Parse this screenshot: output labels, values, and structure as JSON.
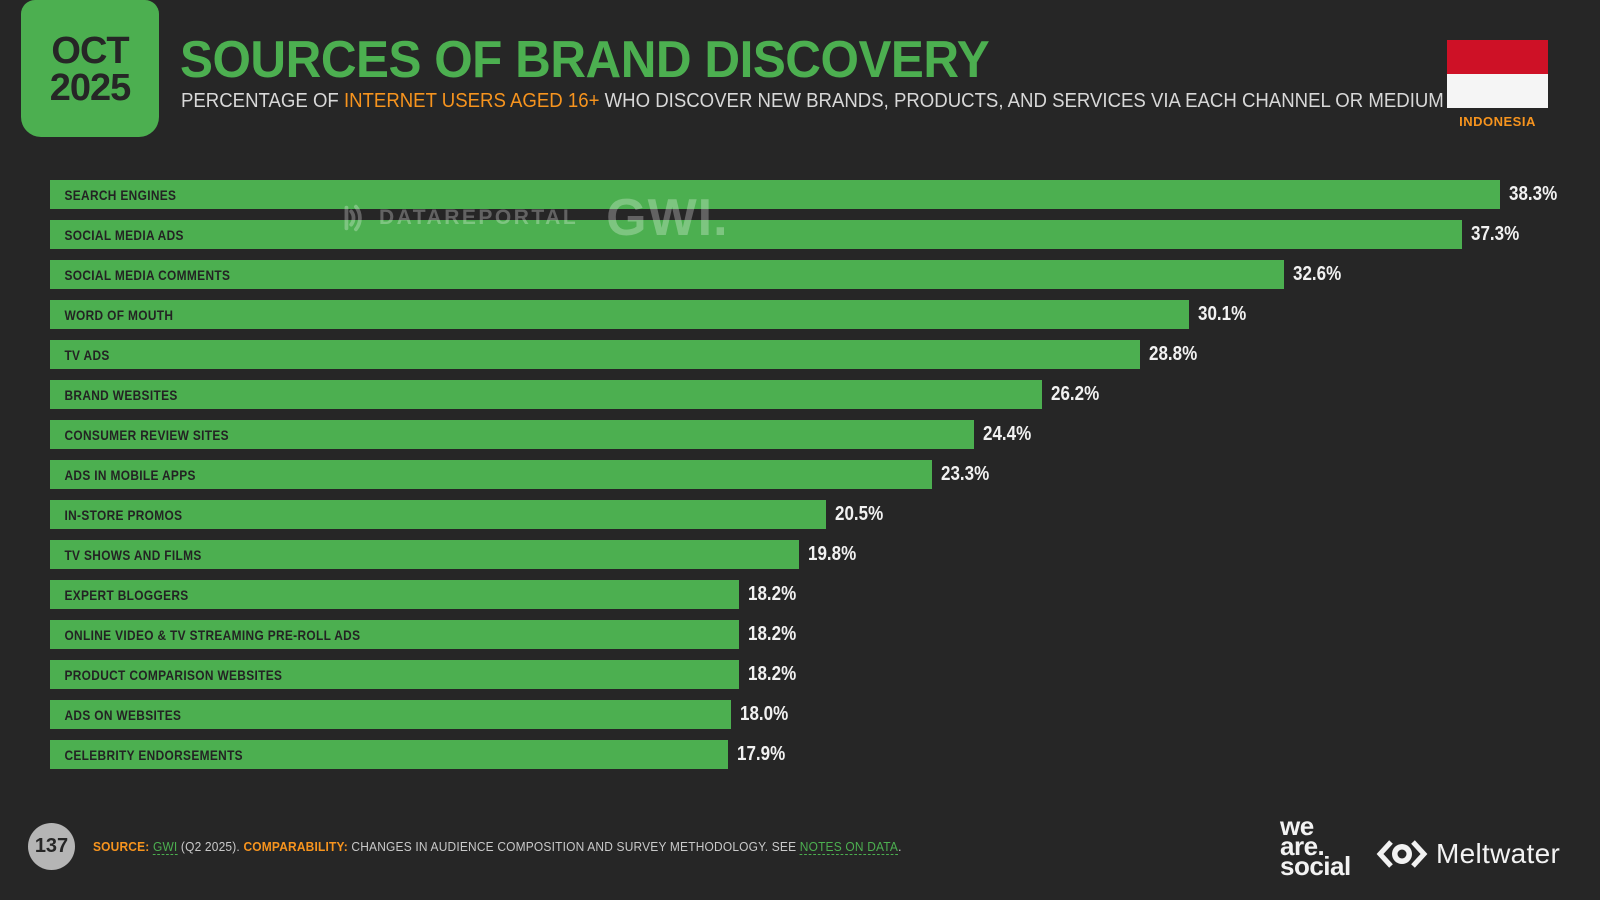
{
  "header": {
    "badge": {
      "month": "OCT",
      "year": "2025"
    },
    "title": "SOURCES OF BRAND DISCOVERY",
    "subtitle_prefix": "PERCENTAGE OF ",
    "subtitle_highlight": "INTERNET USERS AGED 16+",
    "subtitle_suffix": " WHO DISCOVER NEW BRANDS, PRODUCTS, AND SERVICES VIA EACH CHANNEL OR MEDIUM",
    "country_label": "INDONESIA"
  },
  "watermark": {
    "datareportal": "DATAREPORTAL",
    "gwi": "GWI."
  },
  "chart_data": {
    "type": "bar",
    "orientation": "horizontal",
    "title": "SOURCES OF BRAND DISCOVERY",
    "xlabel": "",
    "ylabel": "",
    "xlim": [
      0,
      40
    ],
    "grid": false,
    "legend": "none",
    "bar_color": "#4CAF50",
    "categories": [
      "SEARCH ENGINES",
      "SOCIAL MEDIA ADS",
      "SOCIAL MEDIA COMMENTS",
      "WORD OF MOUTH",
      "TV ADS",
      "BRAND WEBSITES",
      "CONSUMER REVIEW SITES",
      "ADS IN MOBILE APPS",
      "IN-STORE PROMOS",
      "TV SHOWS AND FILMS",
      "EXPERT BLOGGERS",
      "ONLINE VIDEO & TV STREAMING PRE-ROLL ADS",
      "PRODUCT COMPARISON WEBSITES",
      "ADS ON WEBSITES",
      "CELEBRITY ENDORSEMENTS"
    ],
    "values": [
      38.3,
      37.3,
      32.6,
      30.1,
      28.8,
      26.2,
      24.4,
      23.3,
      20.5,
      19.8,
      18.2,
      18.2,
      18.2,
      18.0,
      17.9
    ],
    "value_labels": [
      "38.3%",
      "37.3%",
      "32.6%",
      "30.1%",
      "28.8%",
      "26.2%",
      "24.4%",
      "23.3%",
      "20.5%",
      "19.8%",
      "18.2%",
      "18.2%",
      "18.2%",
      "18.0%",
      "17.9%"
    ]
  },
  "footer": {
    "page_number": "137",
    "source_label": "SOURCE:",
    "source_link": "GWI",
    "source_rest": " (Q2 2025). ",
    "comparability_label": "COMPARABILITY:",
    "comparability_text": " CHANGES IN AUDIENCE COMPOSITION AND SURVEY METHODOLOGY. SEE ",
    "notes_link": "NOTES ON DATA",
    "notes_period": ".",
    "logos": {
      "we_are_social_line1": "we",
      "we_are_social_line2": "are.",
      "we_are_social_line3": "social",
      "meltwater": "Meltwater"
    }
  },
  "colors": {
    "background": "#262626",
    "bar_green": "#4CAF50",
    "accent_orange": "#F7941E",
    "text_light": "#D8D8D8",
    "value_white": "#F1F1F1",
    "flag_red": "#CE1126",
    "flag_white": "#F5F5F5",
    "page_circle_gray": "#B5B5B5"
  }
}
